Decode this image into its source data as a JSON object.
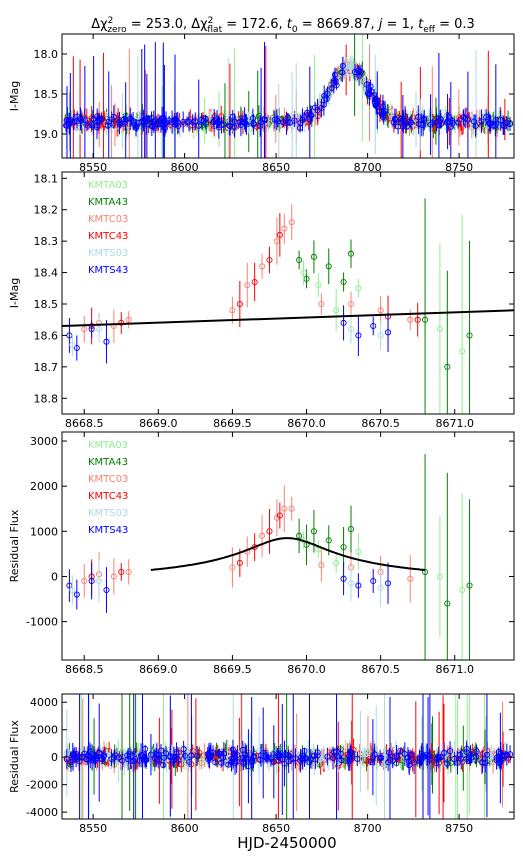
{
  "title": "Δχ²zero = 253.0, Δχ²flat = 172.6, t0 = 8669.87, j = 1, teff = 0.3",
  "title_parts": {
    "a": "Δχ",
    "a_sup": "2",
    "a_sub": "zero",
    "a_val": " = 253.0, ",
    "b": "Δχ",
    "b_sup": "2",
    "b_sub": "flat",
    "b_val": " = 172.6, ",
    "c": "t",
    "c_sub": "0",
    "c_val": " = 8669.87, ",
    "d": "j",
    "d_val": " = 1, ",
    "e": "t",
    "e_sub": "eff",
    "e_val": " = 0.3"
  },
  "xlabel": "HJD-2450000",
  "colors": {
    "KMTA03": "#90ee90",
    "KMTA43": "#008000",
    "KMTC03": "#fa8072",
    "KMTC43": "#ff0000",
    "KMTS03": "#add8e6",
    "KMTS43": "#0000ff"
  },
  "chart_data": [
    {
      "id": "panel1",
      "type": "scatter",
      "ylabel": "I-Mag",
      "xlim": [
        8533,
        8780
      ],
      "ylim": [
        19.3,
        17.75
      ],
      "y_inverted": true,
      "xticks": [
        8550,
        8600,
        8650,
        8700,
        8750
      ],
      "yticks": [
        18.0,
        18.5,
        19.0
      ],
      "baseline": 18.85,
      "peak": {
        "x": 8690,
        "y": 18.15,
        "width": 14
      },
      "series": [
        "KMTA03",
        "KMTA43",
        "KMTC03",
        "KMTC43",
        "KMTS03",
        "KMTS43"
      ]
    },
    {
      "id": "panel2",
      "type": "scatter",
      "ylabel": "I-Mag",
      "xlim": [
        8668.35,
        8671.4
      ],
      "ylim": [
        18.85,
        18.08
      ],
      "y_inverted": true,
      "xticks": [
        8668.5,
        8669.0,
        8669.5,
        8670.0,
        8670.5,
        8671.0
      ],
      "yticks": [
        18.1,
        18.2,
        18.3,
        18.4,
        18.5,
        18.6,
        18.7,
        18.8
      ],
      "legend": [
        "KMTA03",
        "KMTA43",
        "KMTC03",
        "KMTC43",
        "KMTS03",
        "KMTS43"
      ],
      "legend_position": "top-left",
      "model_line": {
        "x": [
          8668.35,
          8671.4
        ],
        "y": [
          18.57,
          18.52
        ]
      },
      "series": [
        {
          "name": "KMTC03",
          "x": [
            8668.5,
            8668.6,
            8668.7,
            8668.8,
            8669.5,
            8669.6,
            8669.7,
            8669.8,
            8669.85,
            8669.9,
            8670.1,
            8670.3,
            8670.5,
            8670.7
          ],
          "y": [
            18.58,
            18.56,
            18.57,
            18.55,
            18.52,
            18.44,
            18.38,
            18.3,
            18.26,
            18.24,
            18.5,
            18.5,
            18.52,
            18.55
          ]
        },
        {
          "name": "KMTC43",
          "x": [
            8668.55,
            8668.75,
            8669.55,
            8669.65,
            8669.75,
            8669.82,
            8670.55,
            8670.75
          ],
          "y": [
            18.57,
            18.56,
            18.5,
            18.43,
            18.36,
            18.28,
            18.54,
            18.55
          ]
        },
        {
          "name": "KMTA43",
          "x": [
            8669.95,
            8670.0,
            8670.05,
            8670.15,
            8670.25,
            8670.3,
            8670.8,
            8670.95,
            8671.1
          ],
          "y": [
            18.36,
            18.42,
            18.35,
            18.38,
            18.43,
            18.34,
            18.55,
            18.7,
            18.6
          ]
        },
        {
          "name": "KMTA03",
          "x": [
            8669.98,
            8670.08,
            8670.2,
            8670.35,
            8670.9,
            8671.05
          ],
          "y": [
            18.4,
            18.44,
            18.52,
            18.45,
            18.58,
            18.65
          ]
        },
        {
          "name": "KMTS43",
          "x": [
            8668.4,
            8668.45,
            8668.55,
            8668.65,
            8670.25,
            8670.35,
            8670.45,
            8670.55
          ],
          "y": [
            18.6,
            18.64,
            18.58,
            18.62,
            18.56,
            18.6,
            18.57,
            18.59
          ]
        },
        {
          "name": "KMTS03",
          "x": [
            8668.42,
            8668.6,
            8670.3,
            8670.5
          ],
          "y": [
            18.63,
            18.58,
            18.58,
            18.6
          ]
        }
      ]
    },
    {
      "id": "panel3",
      "type": "scatter",
      "ylabel": "Residual Flux",
      "xlim": [
        8668.35,
        8671.4
      ],
      "ylim": [
        -1850,
        3200
      ],
      "xticks": [
        8668.5,
        8669.0,
        8669.5,
        8670.0,
        8670.5,
        8671.0
      ],
      "yticks": [
        -1000,
        0,
        1000,
        2000,
        3000
      ],
      "legend": [
        "KMTA03",
        "KMTA43",
        "KMTC03",
        "KMTC43",
        "KMTS03",
        "KMTS43"
      ],
      "legend_position": "top-left",
      "model_curve": {
        "x_start": 8668.95,
        "x_end": 8670.8,
        "t0": 8669.87,
        "amp": 1020,
        "offset": -170,
        "teff": 0.3
      },
      "series": [
        {
          "name": "KMTC03",
          "x": [
            8668.5,
            8668.6,
            8668.7,
            8668.8,
            8669.5,
            8669.6,
            8669.7,
            8669.8,
            8669.85,
            8669.9,
            8670.1,
            8670.3,
            8670.5,
            8670.7
          ],
          "y": [
            -100,
            50,
            0,
            100,
            200,
            550,
            900,
            1300,
            1500,
            1500,
            250,
            200,
            100,
            -50
          ]
        },
        {
          "name": "KMTC43",
          "x": [
            8668.55,
            8668.75,
            8669.55,
            8669.65,
            8669.75,
            8669.82
          ],
          "y": [
            0,
            100,
            300,
            650,
            1000,
            1350
          ]
        },
        {
          "name": "KMTA43",
          "x": [
            8669.95,
            8670.0,
            8670.05,
            8670.15,
            8670.25,
            8670.3,
            8670.8,
            8670.95,
            8671.1
          ],
          "y": [
            900,
            700,
            1000,
            800,
            650,
            1050,
            100,
            -600,
            -200
          ]
        },
        {
          "name": "KMTA03",
          "x": [
            8669.98,
            8670.08,
            8670.2,
            8670.35,
            8670.9,
            8671.05
          ],
          "y": [
            800,
            600,
            300,
            550,
            0,
            -300
          ]
        },
        {
          "name": "KMTS43",
          "x": [
            8668.4,
            8668.45,
            8668.55,
            8668.65,
            8670.25,
            8670.35,
            8670.45,
            8670.55
          ],
          "y": [
            -200,
            -400,
            -100,
            -300,
            -50,
            -200,
            -100,
            -150
          ]
        },
        {
          "name": "KMTS03",
          "x": [
            8668.42,
            8668.6,
            8670.3,
            8670.5
          ],
          "y": [
            -300,
            -100,
            -150,
            -250
          ]
        }
      ]
    },
    {
      "id": "panel4",
      "type": "scatter",
      "ylabel": "Residual Flux",
      "xlim": [
        8533,
        8780
      ],
      "ylim": [
        -4500,
        4600
      ],
      "xticks": [
        8550,
        8600,
        8650,
        8700,
        8750
      ],
      "yticks": [
        -4000,
        -2000,
        0,
        2000,
        4000
      ],
      "series": [
        "KMTA03",
        "KMTA43",
        "KMTC03",
        "KMTC43",
        "KMTS03",
        "KMTS43"
      ]
    }
  ]
}
